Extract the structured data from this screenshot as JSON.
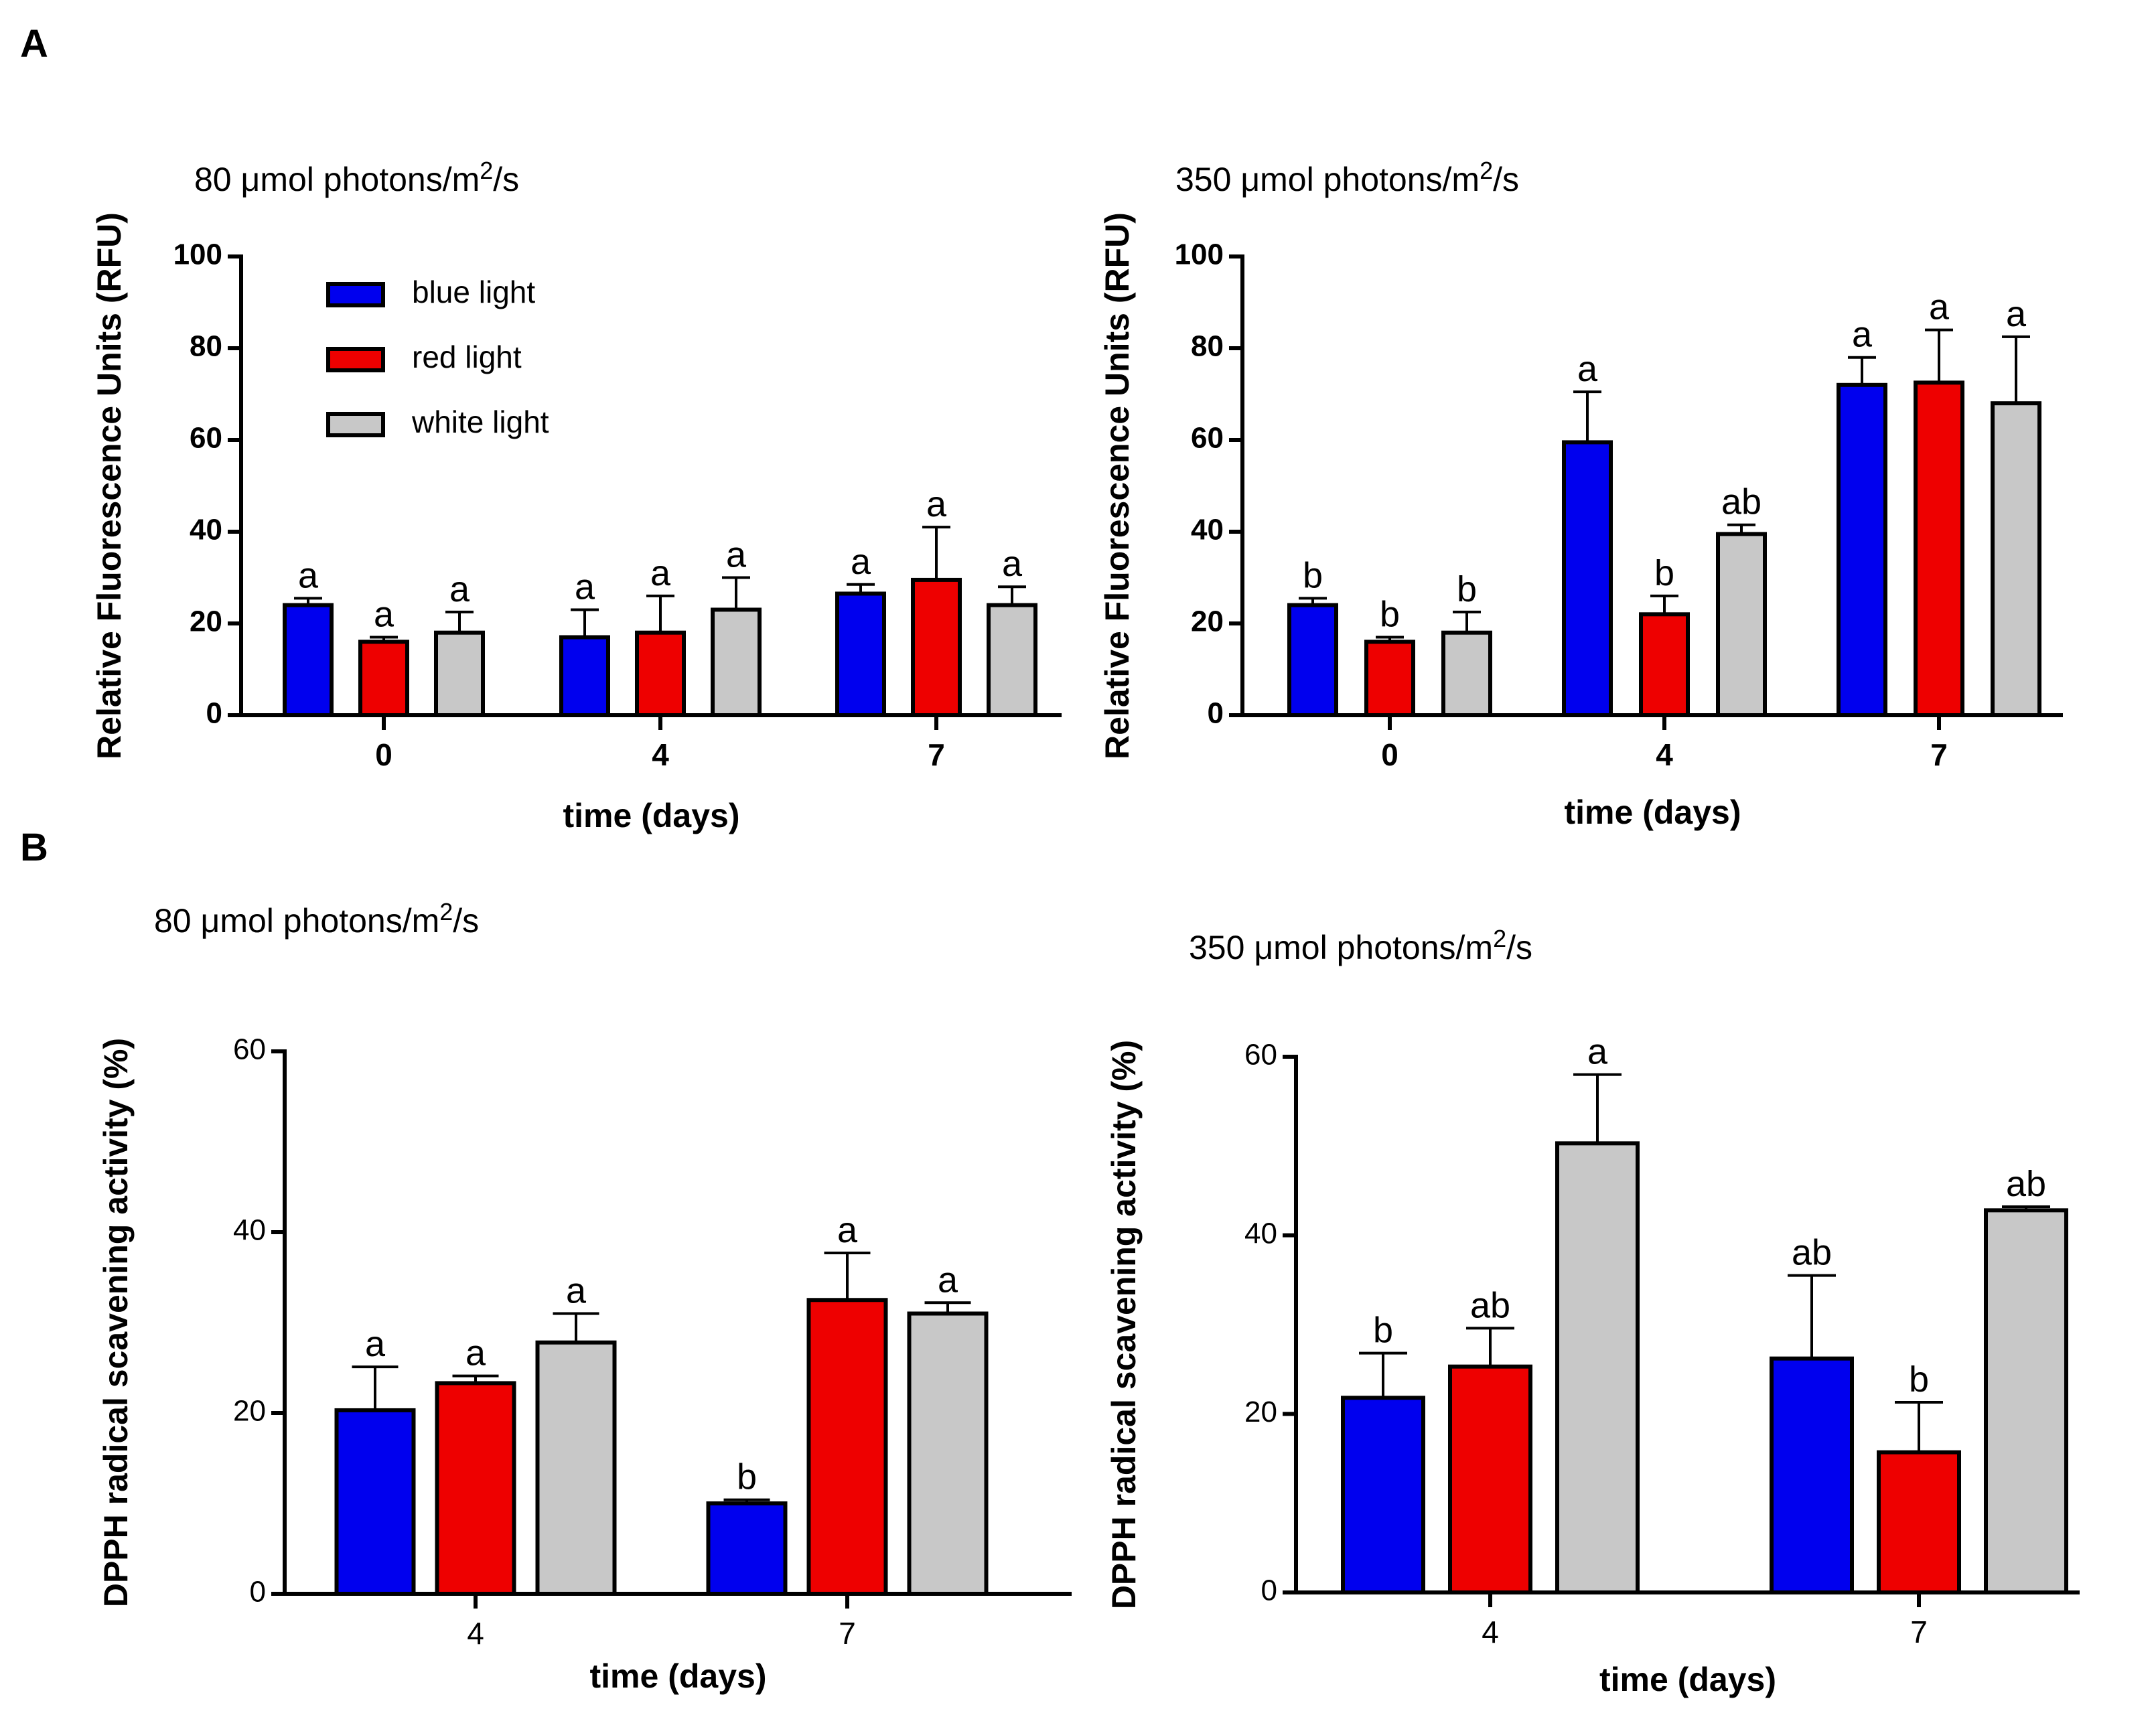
{
  "figure": {
    "panel_labels": [
      "A",
      "B"
    ],
    "colors": {
      "blue_light": "#0000ee",
      "red_light": "#ee0000",
      "white_light": "#c8c8c8",
      "axis": "#000000"
    }
  },
  "chart_data": [
    {
      "id": "A-left",
      "type": "bar",
      "title_prefix": "80 μmol photons/m",
      "title_sup": "2",
      "title_suffix": "/s",
      "xlabel": "time (days)",
      "ylabel": "Relative Fluorescence Units (RFU)",
      "ylim": [
        0,
        100
      ],
      "yticks": [
        "0",
        "20",
        "40",
        "60",
        "80",
        "100"
      ],
      "categories": [
        "0",
        "4",
        "7"
      ],
      "legend": [
        "blue light",
        "red light",
        "white light"
      ],
      "series": [
        {
          "name": "blue light",
          "values": [
            24,
            17,
            26.5
          ],
          "errors": [
            1.5,
            6,
            2
          ],
          "letters": [
            "a",
            "a",
            "a"
          ]
        },
        {
          "name": "red light",
          "values": [
            16,
            18,
            29.5
          ],
          "errors": [
            1,
            8,
            11.5
          ],
          "letters": [
            "a",
            "a",
            "a"
          ]
        },
        {
          "name": "white light",
          "values": [
            18,
            23,
            24
          ],
          "errors": [
            4.5,
            7,
            4
          ],
          "letters": [
            "a",
            "a",
            "a"
          ]
        }
      ]
    },
    {
      "id": "A-right",
      "type": "bar",
      "title_prefix": "350 μmol photons/m",
      "title_sup": "2",
      "title_suffix": "/s",
      "xlabel": "time (days)",
      "ylabel": "Relative Fluorescence Units (RFU)",
      "ylim": [
        0,
        100
      ],
      "yticks": [
        "0",
        "20",
        "40",
        "60",
        "80",
        "100"
      ],
      "categories": [
        "0",
        "4",
        "7"
      ],
      "series": [
        {
          "name": "blue light",
          "values": [
            24,
            59.5,
            72
          ],
          "errors": [
            1.5,
            11,
            6
          ],
          "letters": [
            "b",
            "a",
            "a"
          ]
        },
        {
          "name": "red light",
          "values": [
            16,
            22,
            72.5
          ],
          "errors": [
            1,
            4,
            11.5
          ],
          "letters": [
            "b",
            "b",
            "a"
          ]
        },
        {
          "name": "white light",
          "values": [
            18,
            39.5,
            68
          ],
          "errors": [
            4.5,
            2,
            14.5
          ],
          "letters": [
            "b",
            "ab",
            "a"
          ]
        }
      ]
    },
    {
      "id": "B-left",
      "type": "bar",
      "title_prefix": "80 μmol photons/m",
      "title_sup": "2",
      "title_suffix": "/s",
      "xlabel": "time (days)",
      "ylabel": "DPPH radical  scavening activity (%)",
      "ylim": [
        0,
        60
      ],
      "yticks": [
        "0",
        "20",
        "40",
        "60"
      ],
      "categories": [
        "4",
        "7"
      ],
      "series": [
        {
          "name": "blue light",
          "values": [
            20.3,
            10
          ],
          "errors": [
            4.8,
            0.4
          ],
          "letters": [
            "a",
            "b"
          ]
        },
        {
          "name": "red light",
          "values": [
            23.3,
            32.5
          ],
          "errors": [
            0.8,
            5.2
          ],
          "letters": [
            "a",
            "a"
          ]
        },
        {
          "name": "white light",
          "values": [
            27.8,
            31
          ],
          "errors": [
            3.2,
            1.2
          ],
          "letters": [
            "a",
            "a"
          ]
        }
      ]
    },
    {
      "id": "B-right",
      "type": "bar",
      "title_prefix": "350 μmol photons/m",
      "title_sup": "2",
      "title_suffix": "/s",
      "xlabel": "time (days)",
      "ylabel": "DPPH radical scavening activity (%)",
      "ylim": [
        0,
        60
      ],
      "yticks": [
        "0",
        "20",
        "40",
        "60"
      ],
      "categories": [
        "4",
        "7"
      ],
      "series": [
        {
          "name": "blue light",
          "values": [
            21.8,
            26.2
          ],
          "errors": [
            5,
            9.3
          ],
          "letters": [
            "b",
            "ab"
          ]
        },
        {
          "name": "red light",
          "values": [
            25.3,
            15.7
          ],
          "errors": [
            4.3,
            5.6
          ],
          "letters": [
            "ab",
            "b"
          ]
        },
        {
          "name": "white light",
          "values": [
            50.3,
            42.8
          ],
          "errors": [
            7.7,
            0.4
          ],
          "letters": [
            "a",
            "ab"
          ]
        }
      ]
    }
  ]
}
